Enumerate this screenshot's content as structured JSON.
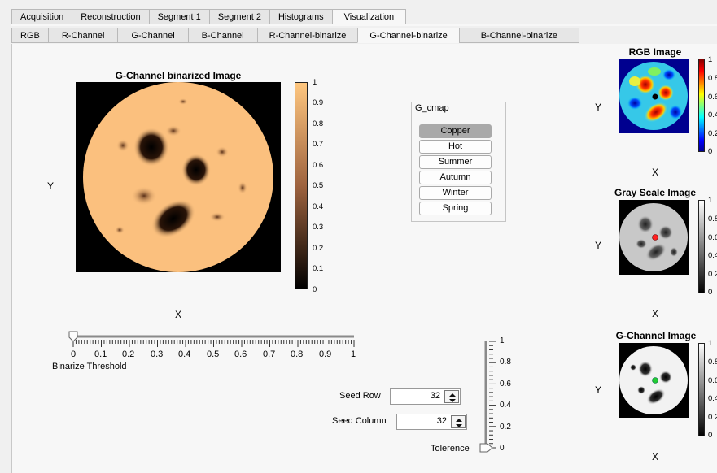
{
  "tabs_top": [
    "Acquisition",
    "Reconstruction",
    "Segment 1",
    "Segment 2",
    "Histograms",
    "Visualization"
  ],
  "tabs_sub": [
    "RGB",
    "R-Channel",
    "G-Channel",
    "B-Channel",
    "R-Channel-binarize",
    "G-Channel-binarize",
    "B-Channel-binarize"
  ],
  "main_plot": {
    "title": "G-Channel binarized Image",
    "xlabel": "X",
    "ylabel": "Y",
    "colorbar_ticks": [
      "1",
      "0.9",
      "0.8",
      "0.7",
      "0.6",
      "0.5",
      "0.4",
      "0.3",
      "0.2",
      "0.1",
      "0"
    ]
  },
  "cmap_panel": {
    "title": "G_cmap",
    "buttons": [
      "Copper",
      "Hot",
      "Summer",
      "Autumn",
      "Winter",
      "Spring"
    ],
    "selected": "Copper"
  },
  "slider": {
    "ticks": [
      "0",
      "0.1",
      "0.2",
      "0.3",
      "0.4",
      "0.5",
      "0.6",
      "0.7",
      "0.8",
      "0.9",
      "1"
    ],
    "label": "Binarize Threshold",
    "value": 0
  },
  "seed_row": {
    "label": "Seed Row",
    "value": "32"
  },
  "seed_column": {
    "label": "Seed Column",
    "value": "32"
  },
  "tolerance": {
    "label": "Tolerence",
    "ticks": [
      "1",
      "0.8",
      "0.6",
      "0.4",
      "0.2",
      "0"
    ],
    "value": 0
  },
  "rgb_image": {
    "title": "RGB Image",
    "xlabel": "X",
    "ylabel": "Y",
    "cb_ticks": [
      "1",
      "0.8",
      "0.6",
      "0.4",
      "0.2",
      "0"
    ]
  },
  "gray_image": {
    "title": "Gray Scale Image",
    "xlabel": "X",
    "ylabel": "Y",
    "cb_ticks": [
      "1",
      "0.8",
      "0.6",
      "0.4",
      "0.2",
      "0"
    ]
  },
  "g_image": {
    "title": "G-Channel Image",
    "xlabel": "X",
    "ylabel": "Y",
    "cb_ticks": [
      "1",
      "0.8",
      "0.6",
      "0.4",
      "0.2",
      "0"
    ]
  },
  "colors": {
    "copper_light": "#fbc07e",
    "marker_black": "#000000",
    "marker_red": "#ff2020",
    "marker_green": "#22cc33"
  }
}
